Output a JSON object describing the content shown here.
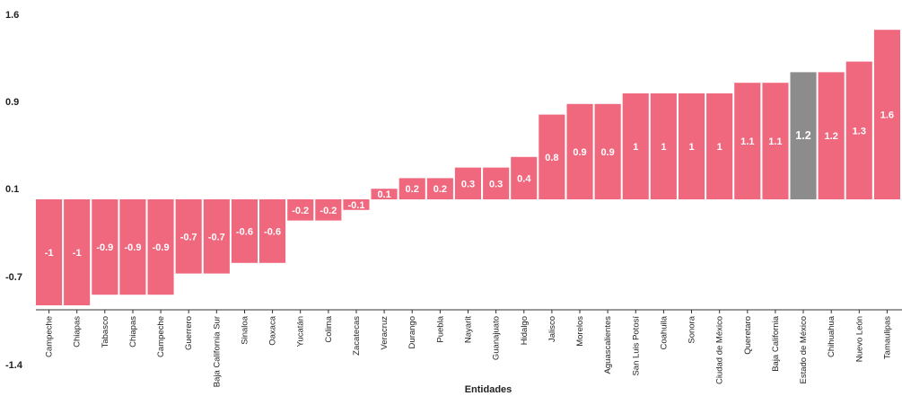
{
  "chart_data": {
    "type": "bar",
    "xlabel": "Entidades",
    "ylabel": "",
    "ylim": [
      -1.0,
      1.6
    ],
    "y_ticks": [
      "1.6",
      "0.9",
      "0.1",
      "-0.7",
      "-1.4"
    ],
    "grid": false,
    "bar_color": "#f0687e",
    "highlight_color": "#8c8c8c",
    "highlight_category": "Estado de México",
    "categories": [
      "Campeche",
      "Chiapas",
      "Tabasco",
      "Chiapas",
      "Campeche",
      "Guerrero",
      "Baja California Sur",
      "Sinaloa",
      "Oaxaca",
      "Yucatán",
      "Colima",
      "Zacatecas",
      "Veracruz",
      "Durango",
      "Puebla",
      "Nayarit",
      "Guanajuato",
      "Hidalgo",
      "Jalisco",
      "Morelos",
      "Aguascalientes",
      "San Luis Potosí",
      "Coahuila",
      "Sonora",
      "Ciudad de México",
      "Queretaro",
      "Baja California",
      "Estado de México",
      "Chihuahua",
      "Nuevo León",
      "Tamaulipas"
    ],
    "values": [
      -1,
      -1,
      -0.9,
      -0.9,
      -0.9,
      -0.7,
      -0.7,
      -0.6,
      -0.6,
      -0.2,
      -0.2,
      -0.1,
      0.1,
      0.2,
      0.2,
      0.3,
      0.3,
      0.4,
      0.8,
      0.9,
      0.9,
      1,
      1,
      1,
      1,
      1.1,
      1.1,
      1.2,
      1.2,
      1.3,
      1.6
    ],
    "value_labels": [
      "-1",
      "-1",
      "-0.9",
      "-0.9",
      "-0.9",
      "-0.7",
      "-0.7",
      "-0.6",
      "-0.6",
      "-0.2",
      "-0.2",
      "-0.1",
      "0.1",
      "0.2",
      "0.2",
      "0.3",
      "0.3",
      "0.4",
      "0.8",
      "0.9",
      "0.9",
      "1",
      "1",
      "1",
      "1",
      "1.1",
      "1.1",
      "1.2",
      "1.2",
      "1.3",
      "1.6"
    ]
  }
}
